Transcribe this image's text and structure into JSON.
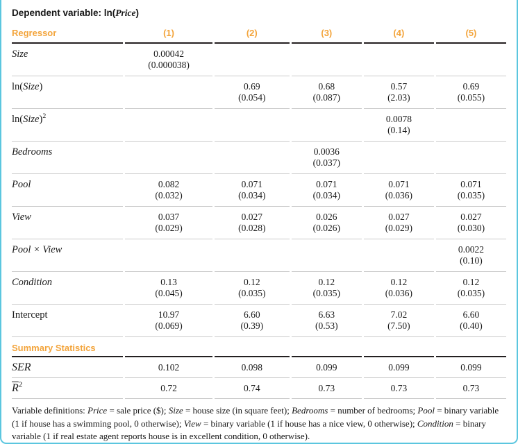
{
  "colors": {
    "accent_orange": "#f3a43b",
    "border_blue": "#5bc6df",
    "rule_dark": "#231f20",
    "rule_gray": "#c9c9c9"
  },
  "title": {
    "prefix": "Dependent variable: ln(",
    "variable": "Price",
    "suffix": ")"
  },
  "header": {
    "regressor": "Regressor",
    "columns": [
      "(1)",
      "(2)",
      "(3)",
      "(4)",
      "(5)"
    ]
  },
  "rows": [
    {
      "label": {
        "it": "Size"
      },
      "cells": [
        {
          "est": "0.00042",
          "se": "(0.000038)"
        },
        null,
        null,
        null,
        null
      ]
    },
    {
      "label": {
        "pre": "ln(",
        "it": "Size",
        "post": ")"
      },
      "cells": [
        null,
        {
          "est": "0.69",
          "se": "(0.054)"
        },
        {
          "est": "0.68",
          "se": "(0.087)"
        },
        {
          "est": "0.57",
          "se": "(2.03)"
        },
        {
          "est": "0.69",
          "se": "(0.055)"
        }
      ]
    },
    {
      "label": {
        "pre": "ln(",
        "it": "Size",
        "post": ")",
        "sup": "2"
      },
      "cells": [
        null,
        null,
        null,
        {
          "est": "0.0078",
          "se": "(0.14)"
        },
        null
      ]
    },
    {
      "label": {
        "it": "Bedrooms"
      },
      "cells": [
        null,
        null,
        {
          "est": "0.0036",
          "se": "(0.037)"
        },
        null,
        null
      ]
    },
    {
      "label": {
        "it": "Pool"
      },
      "cells": [
        {
          "est": "0.082",
          "se": "(0.032)"
        },
        {
          "est": "0.071",
          "se": "(0.034)"
        },
        {
          "est": "0.071",
          "se": "(0.034)"
        },
        {
          "est": "0.071",
          "se": "(0.036)"
        },
        {
          "est": "0.071",
          "se": "(0.035)"
        }
      ]
    },
    {
      "label": {
        "it": "View"
      },
      "cells": [
        {
          "est": "0.037",
          "se": "(0.029)"
        },
        {
          "est": "0.027",
          "se": "(0.028)"
        },
        {
          "est": "0.026",
          "se": "(0.026)"
        },
        {
          "est": "0.027",
          "se": "(0.029)"
        },
        {
          "est": "0.027",
          "se": "(0.030)"
        }
      ]
    },
    {
      "label": {
        "it": "Pool × View"
      },
      "cells": [
        null,
        null,
        null,
        null,
        {
          "est": "0.0022",
          "se": "(0.10)"
        }
      ]
    },
    {
      "label": {
        "it": "Condition"
      },
      "cells": [
        {
          "est": "0.13",
          "se": "(0.045)"
        },
        {
          "est": "0.12",
          "se": "(0.035)"
        },
        {
          "est": "0.12",
          "se": "(0.035)"
        },
        {
          "est": "0.12",
          "se": "(0.036)"
        },
        {
          "est": "0.12",
          "se": "(0.035)"
        }
      ]
    },
    {
      "label": {
        "pre": "Intercept"
      },
      "cells": [
        {
          "est": "10.97",
          "se": "(0.069)"
        },
        {
          "est": "6.60",
          "se": "(0.39)"
        },
        {
          "est": "6.63",
          "se": "(0.53)"
        },
        {
          "est": "7.02",
          "se": "(7.50)"
        },
        {
          "est": "6.60",
          "se": "(0.40)"
        }
      ]
    }
  ],
  "summary": {
    "heading": "Summary Statistics",
    "stats": [
      {
        "label": {
          "it": "SER"
        },
        "values": [
          "0.102",
          "0.098",
          "0.099",
          "0.099",
          "0.099"
        ]
      },
      {
        "label": {
          "it": "R",
          "sup": "2"
        },
        "values": [
          "0.72",
          "0.74",
          "0.73",
          "0.73",
          "0.73"
        ]
      }
    ]
  },
  "footnote": {
    "segments": [
      {
        "t": "Variable definitions: "
      },
      {
        "t": "Price",
        "i": true
      },
      {
        "t": " = sale price ($); "
      },
      {
        "t": "Size",
        "i": true
      },
      {
        "t": " = house size (in square feet); "
      },
      {
        "t": "Bedrooms",
        "i": true
      },
      {
        "t": " = number of bedrooms; "
      },
      {
        "t": "Pool",
        "i": true
      },
      {
        "t": " = binary variable (1 if house has a swimming pool, 0 otherwise); "
      },
      {
        "t": "View",
        "i": true
      },
      {
        "t": " = binary variable (1 if house has a nice view, 0 otherwise); "
      },
      {
        "t": "Condition",
        "i": true
      },
      {
        "t": " = binary variable (1 if real estate agent reports house is in excellent condition, 0 otherwise)."
      }
    ]
  }
}
